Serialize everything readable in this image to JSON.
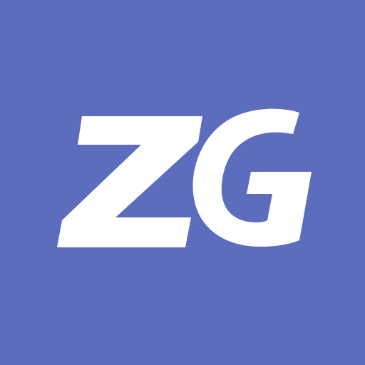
{
  "logo": {
    "text": "ZG",
    "background_color": "#5d6dbe",
    "text_color": "#ffffff"
  }
}
